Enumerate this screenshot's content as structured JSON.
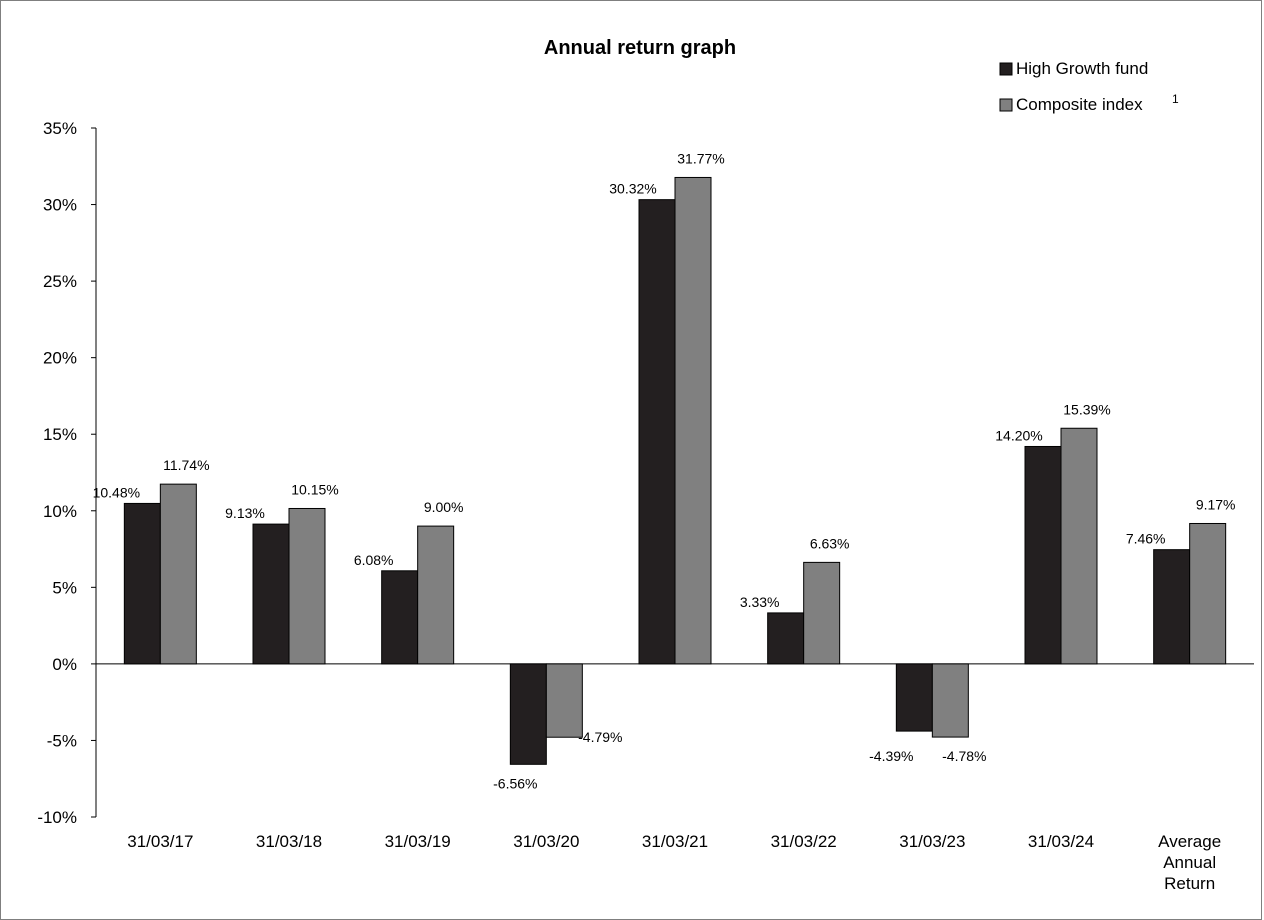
{
  "chart_data": {
    "type": "bar",
    "title": "Annual return graph",
    "xlabel": "",
    "ylabel": "",
    "ylim": [
      -10,
      35
    ],
    "y_ticks": [
      "35%",
      "30%",
      "25%",
      "20%",
      "15%",
      "10%",
      "5%",
      "0%",
      "-5%",
      "-10%"
    ],
    "y_tick_values": [
      35,
      30,
      25,
      20,
      15,
      10,
      5,
      0,
      -5,
      -10
    ],
    "categories": [
      [
        "31/03/17"
      ],
      [
        "31/03/18"
      ],
      [
        "31/03/19"
      ],
      [
        "31/03/20"
      ],
      [
        "31/03/21"
      ],
      [
        "31/03/22"
      ],
      [
        "31/03/23"
      ],
      [
        "31/03/24"
      ],
      [
        "Average",
        "Annual",
        "Return"
      ]
    ],
    "series": [
      {
        "name": "High Growth fund",
        "color": "#231f20",
        "values": [
          10.48,
          9.13,
          6.08,
          -6.56,
          30.32,
          3.33,
          -4.39,
          14.2,
          7.46
        ],
        "labels": [
          "10.48%",
          "9.13%",
          "6.08%",
          "-6.56%",
          "30.32%",
          "3.33%",
          "-4.39%",
          "14.20%",
          "7.46%"
        ]
      },
      {
        "name": "Composite index",
        "name_superscript": "1",
        "color": "#808080",
        "values": [
          11.74,
          10.15,
          9.0,
          -4.79,
          31.77,
          6.63,
          -4.78,
          15.39,
          9.17
        ],
        "labels": [
          "11.74%",
          "10.15%",
          "9.00%",
          "-4.79%",
          "31.77%",
          "6.63%",
          "-4.78%",
          "15.39%",
          "9.17%"
        ]
      }
    ],
    "grid": false,
    "legend_position": "top-right"
  }
}
